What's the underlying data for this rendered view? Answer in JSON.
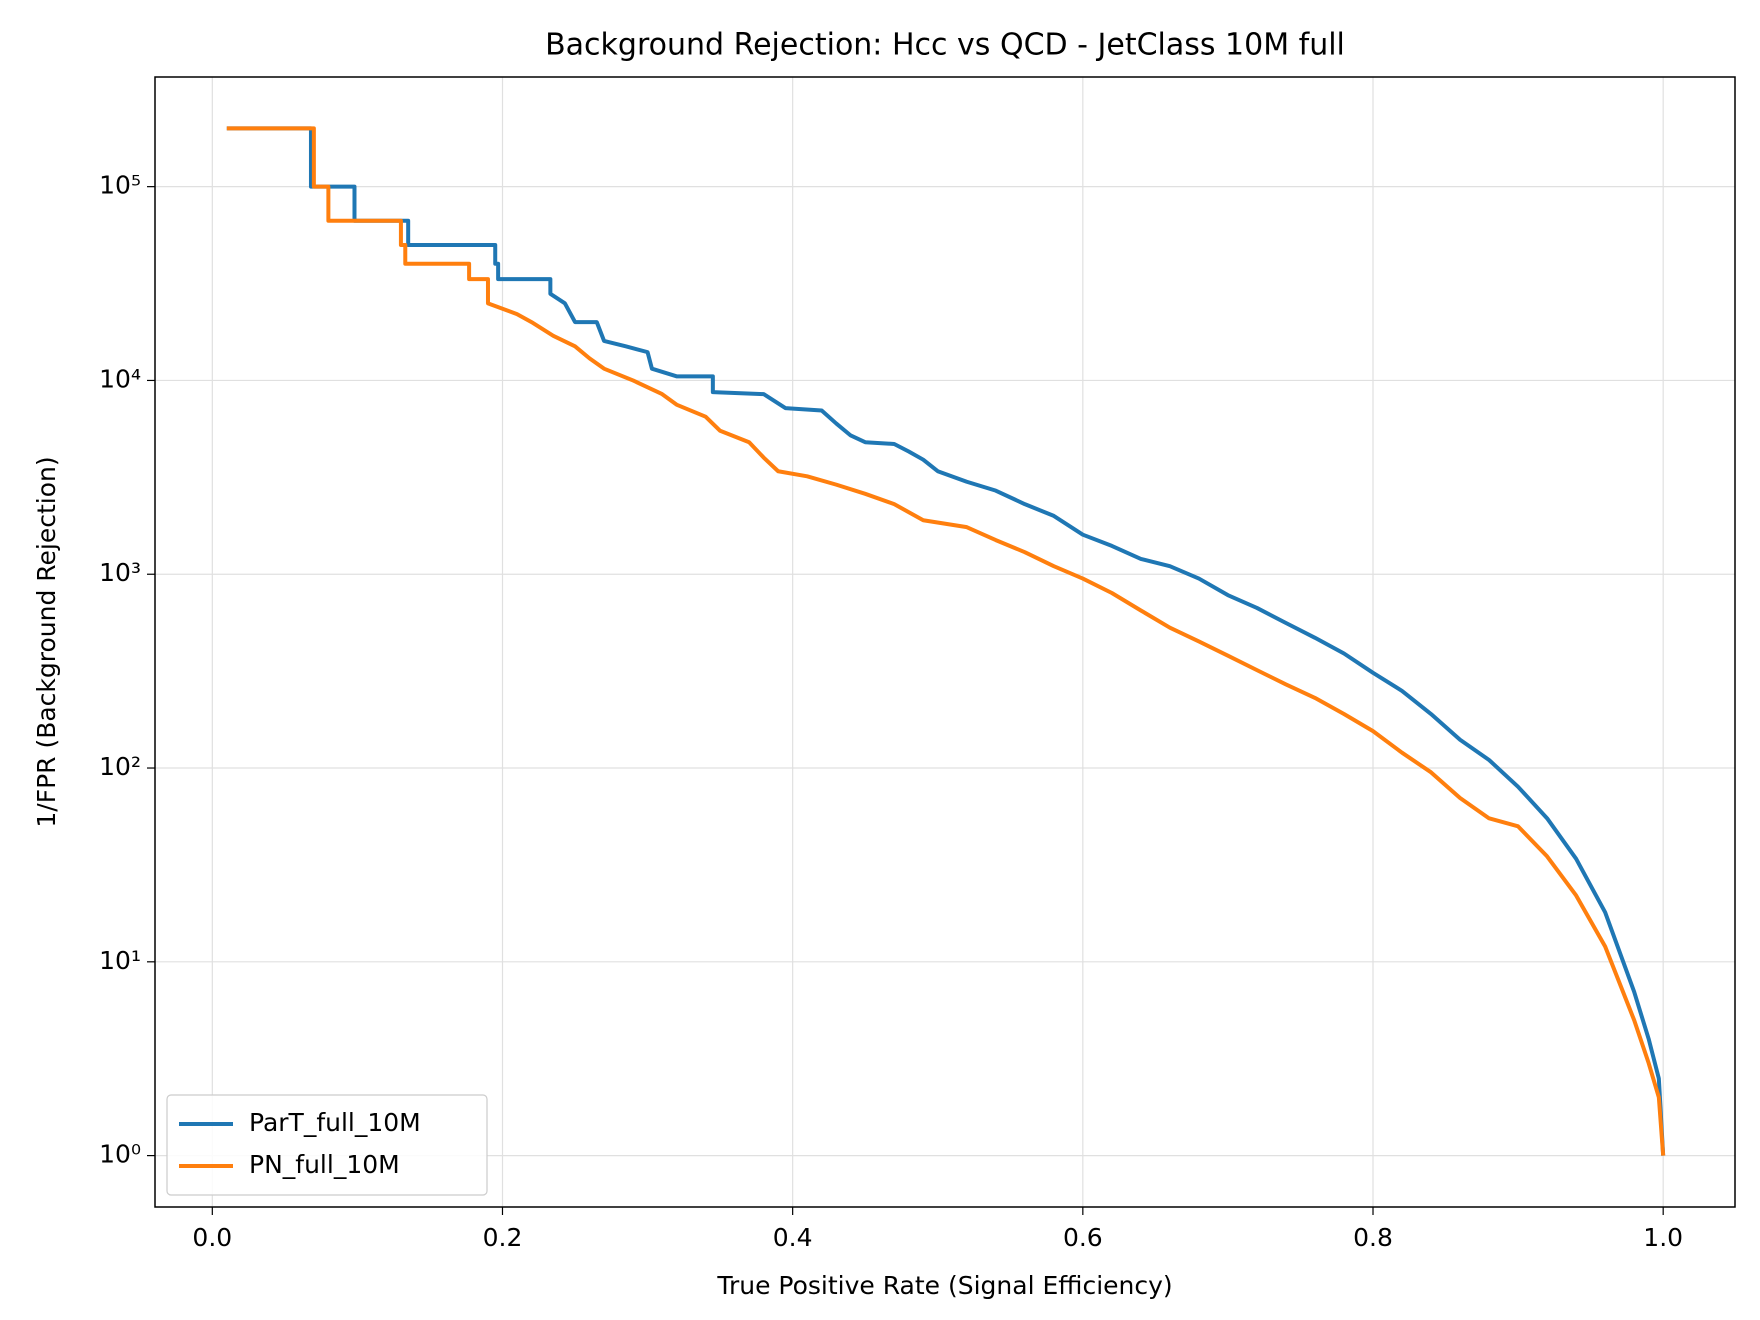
{
  "chart_data": {
    "type": "line",
    "title": "Background Rejection: Hcc vs QCD - JetClass 10M full",
    "x_label": "True Positive Rate (Signal Efficiency)",
    "y_label": "1/FPR (Background Rejection)",
    "y_scale": "log",
    "grid": true,
    "legend_position": "lower left",
    "xlim": [
      -0.0395,
      1.0495
    ],
    "ylim": [
      0.543,
      368000
    ],
    "xticks": [
      {
        "value": 0,
        "label": "0.0"
      },
      0.2,
      0.4,
      0.6,
      0.8,
      {
        "value": 1,
        "label": "1.0"
      }
    ],
    "yticks": [
      {
        "value": 1,
        "label": "10⁰"
      },
      {
        "value": 10,
        "label": "10¹"
      },
      {
        "value": 100,
        "label": "10²"
      },
      {
        "value": 1000,
        "label": "10³"
      },
      {
        "value": 10000,
        "label": "10⁴"
      },
      {
        "value": 100000,
        "label": "10⁵"
      }
    ],
    "series": [
      {
        "name": "ParT_full_10M",
        "color": "#1f77b4",
        "x": [
          0.01,
          0.068,
          0.068,
          0.098,
          0.098,
          0.135,
          0.135,
          0.195,
          0.195,
          0.197,
          0.197,
          0.233,
          0.233,
          0.243,
          0.25,
          0.265,
          0.27,
          0.285,
          0.3,
          0.303,
          0.32,
          0.345,
          0.345,
          0.38,
          0.395,
          0.42,
          0.43,
          0.44,
          0.45,
          0.47,
          0.48,
          0.49,
          0.5,
          0.52,
          0.54,
          0.56,
          0.58,
          0.6,
          0.62,
          0.64,
          0.66,
          0.68,
          0.7,
          0.72,
          0.74,
          0.76,
          0.78,
          0.8,
          0.82,
          0.84,
          0.86,
          0.88,
          0.9,
          0.92,
          0.94,
          0.96,
          0.98,
          0.99,
          0.997,
          1.0
        ],
        "values": [
          200000,
          200000,
          100000,
          100000,
          66667,
          66667,
          50000,
          50000,
          40000,
          40000,
          33333,
          33333,
          28000,
          25000,
          20000,
          20000,
          16000,
          15000,
          14000,
          11500,
          10500,
          10500,
          8700,
          8500,
          7200,
          7000,
          6000,
          5200,
          4800,
          4700,
          4300,
          3900,
          3400,
          3000,
          2700,
          2300,
          2000,
          1600,
          1400,
          1200,
          1100,
          950,
          780,
          670,
          560,
          470,
          390,
          310,
          250,
          190,
          140,
          110,
          80,
          55,
          34,
          18,
          7,
          4,
          2.5,
          1
        ]
      },
      {
        "name": "PN_full_10M",
        "color": "#ff7f0e",
        "x": [
          0.01,
          0.07,
          0.07,
          0.08,
          0.08,
          0.13,
          0.13,
          0.133,
          0.133,
          0.177,
          0.177,
          0.19,
          0.19,
          0.21,
          0.22,
          0.235,
          0.25,
          0.26,
          0.27,
          0.29,
          0.31,
          0.32,
          0.34,
          0.35,
          0.37,
          0.38,
          0.39,
          0.41,
          0.43,
          0.45,
          0.47,
          0.49,
          0.52,
          0.54,
          0.56,
          0.58,
          0.6,
          0.62,
          0.64,
          0.66,
          0.68,
          0.7,
          0.72,
          0.74,
          0.76,
          0.78,
          0.8,
          0.82,
          0.84,
          0.86,
          0.88,
          0.9,
          0.92,
          0.94,
          0.96,
          0.98,
          0.99,
          0.997,
          1.0
        ],
        "values": [
          200000,
          200000,
          100000,
          100000,
          66667,
          66667,
          50000,
          50000,
          40000,
          40000,
          33333,
          33333,
          25000,
          22000,
          20000,
          17000,
          15000,
          13000,
          11500,
          10000,
          8500,
          7500,
          6500,
          5500,
          4800,
          4000,
          3400,
          3200,
          2900,
          2600,
          2300,
          1900,
          1750,
          1500,
          1300,
          1100,
          950,
          800,
          650,
          530,
          450,
          380,
          320,
          270,
          230,
          190,
          155,
          120,
          95,
          70,
          55,
          50,
          35,
          22,
          12,
          5,
          3,
          2,
          1
        ]
      }
    ]
  }
}
